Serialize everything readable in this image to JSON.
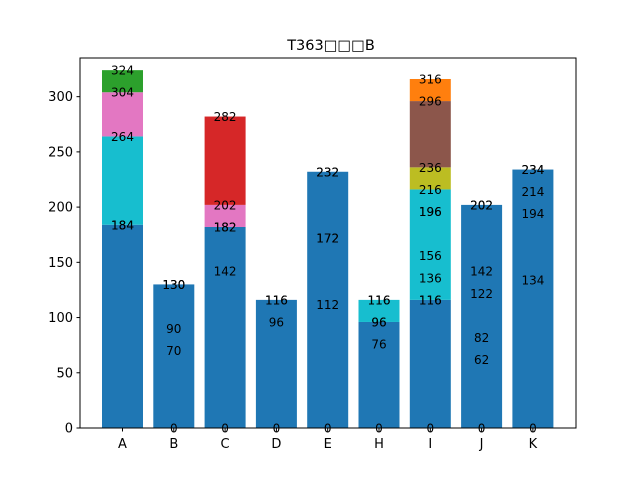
{
  "chart_data": {
    "type": "bar",
    "stacked": true,
    "title": "T363□□□B",
    "xlabel": "",
    "ylabel": "",
    "ylim": [
      0,
      335
    ],
    "yticks": [
      0,
      50,
      100,
      150,
      200,
      250,
      300
    ],
    "grid": false,
    "legend": "none",
    "colors": {
      "blue": "#1f77b4",
      "cyan": "#17becf",
      "pink": "#e377c2",
      "green": "#2ca02c",
      "red": "#d62728",
      "olive": "#bcbd22",
      "brown": "#8c564b",
      "orange": "#ff7f0e"
    },
    "categories": [
      "A",
      "B",
      "C",
      "D",
      "E",
      "H",
      "I",
      "J",
      "K"
    ],
    "bars": [
      {
        "category": "A",
        "segments": [
          {
            "bottom": 0,
            "top": 184,
            "color": "blue"
          },
          {
            "bottom": 184,
            "top": 264,
            "color": "cyan"
          },
          {
            "bottom": 264,
            "top": 304,
            "color": "pink"
          },
          {
            "bottom": 304,
            "top": 324,
            "color": "green"
          }
        ],
        "labels": [
          184,
          184,
          264,
          304,
          324
        ]
      },
      {
        "category": "B",
        "segments": [
          {
            "bottom": 0,
            "top": 130,
            "color": "blue"
          }
        ],
        "labels": [
          0,
          70,
          90,
          130,
          130
        ]
      },
      {
        "category": "C",
        "segments": [
          {
            "bottom": 0,
            "top": 182,
            "color": "blue"
          },
          {
            "bottom": 182,
            "top": 202,
            "color": "pink"
          },
          {
            "bottom": 202,
            "top": 282,
            "color": "red"
          }
        ],
        "labels": [
          0,
          142,
          182,
          182,
          202,
          282
        ]
      },
      {
        "category": "D",
        "segments": [
          {
            "bottom": 0,
            "top": 116,
            "color": "blue"
          }
        ],
        "labels": [
          0,
          96,
          116,
          116
        ]
      },
      {
        "category": "E",
        "segments": [
          {
            "bottom": 0,
            "top": 232,
            "color": "blue"
          }
        ],
        "labels": [
          0,
          112,
          172,
          172,
          232,
          232
        ]
      },
      {
        "category": "H",
        "segments": [
          {
            "bottom": 0,
            "top": 96,
            "color": "blue"
          },
          {
            "bottom": 96,
            "top": 116,
            "color": "cyan"
          }
        ],
        "labels": [
          0,
          76,
          96,
          96,
          116,
          116
        ]
      },
      {
        "category": "I",
        "segments": [
          {
            "bottom": 0,
            "top": 116,
            "color": "blue"
          },
          {
            "bottom": 116,
            "top": 216,
            "color": "cyan"
          },
          {
            "bottom": 216,
            "top": 236,
            "color": "olive"
          },
          {
            "bottom": 236,
            "top": 296,
            "color": "brown"
          },
          {
            "bottom": 296,
            "top": 316,
            "color": "orange"
          }
        ],
        "labels": [
          0,
          116,
          116,
          136,
          156,
          196,
          196,
          216,
          236,
          296,
          316
        ]
      },
      {
        "category": "J",
        "segments": [
          {
            "bottom": 0,
            "top": 202,
            "color": "blue"
          }
        ],
        "labels": [
          0,
          62,
          82,
          122,
          142,
          202,
          202
        ]
      },
      {
        "category": "K",
        "segments": [
          {
            "bottom": 0,
            "top": 234,
            "color": "blue"
          }
        ],
        "labels": [
          0,
          134,
          194,
          214,
          234,
          234
        ]
      }
    ]
  }
}
